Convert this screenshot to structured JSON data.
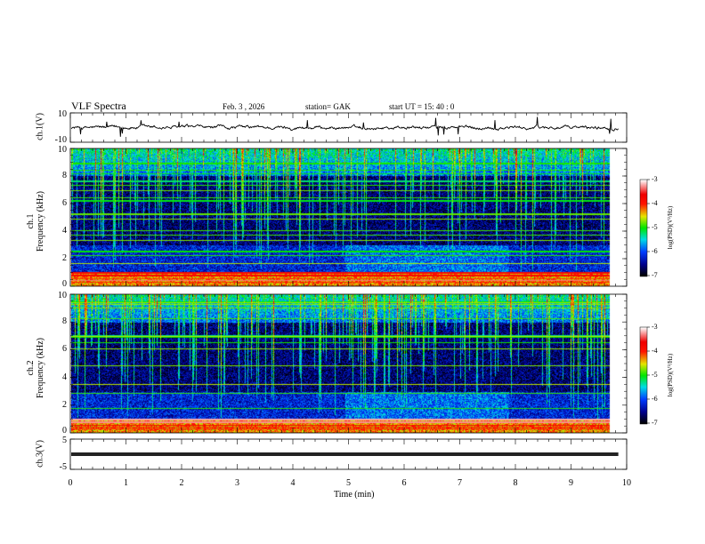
{
  "header": {
    "title": "VLF  Spectra",
    "date": "Feb. 3  , 2026",
    "station": "station= GAK",
    "start": "start  UT  =   15: 40 : 0"
  },
  "chart_data": {
    "type": "heatmap",
    "title": "VLF  Spectra",
    "xlabel": "Time  (min)",
    "xlim": [
      0,
      10
    ],
    "x_ticks": [
      "0",
      "1",
      "2",
      "3",
      "4",
      "5",
      "6",
      "7",
      "8",
      "9",
      "10"
    ],
    "data_end_min": 9.85,
    "panels": [
      {
        "name": "ch1-waveform",
        "type": "line",
        "ylabel": "ch.1(V)",
        "ylim": [
          -10,
          10
        ],
        "y_ticks": [
          "10",
          "-10"
        ],
        "mean": 0,
        "noise_amplitude": 1.5
      },
      {
        "name": "ch1-spectrogram",
        "type": "heatmap",
        "ylabel_top": "ch.1",
        "ylabel": "Frequency  (kHz)",
        "ylim": [
          0,
          10
        ],
        "y_ticks": [
          "0",
          "2",
          "4",
          "6",
          "8",
          "10"
        ],
        "colorbar": {
          "label": "log(PSD)(V²/Hz)",
          "range": [
            -7,
            -3
          ],
          "ticks": [
            "-3",
            "-4",
            "-5",
            "-6",
            "-7"
          ]
        }
      },
      {
        "name": "ch2-spectrogram",
        "type": "heatmap",
        "ylabel_top": "ch.2",
        "ylabel": "Frequency  (kHz)",
        "ylim": [
          0,
          10
        ],
        "y_ticks": [
          "0",
          "2",
          "4",
          "6",
          "8",
          "10"
        ],
        "colorbar": {
          "label": "log(PSD)(V²/Hz)",
          "range": [
            -7,
            -3
          ],
          "ticks": [
            "-3",
            "-4",
            "-5",
            "-6",
            "-7"
          ]
        }
      },
      {
        "name": "ch3-waveform",
        "type": "line",
        "ylabel": "ch.3(V)",
        "ylim": [
          -5,
          5
        ],
        "y_ticks": [
          "5",
          "-5"
        ],
        "mean": 0
      }
    ]
  }
}
